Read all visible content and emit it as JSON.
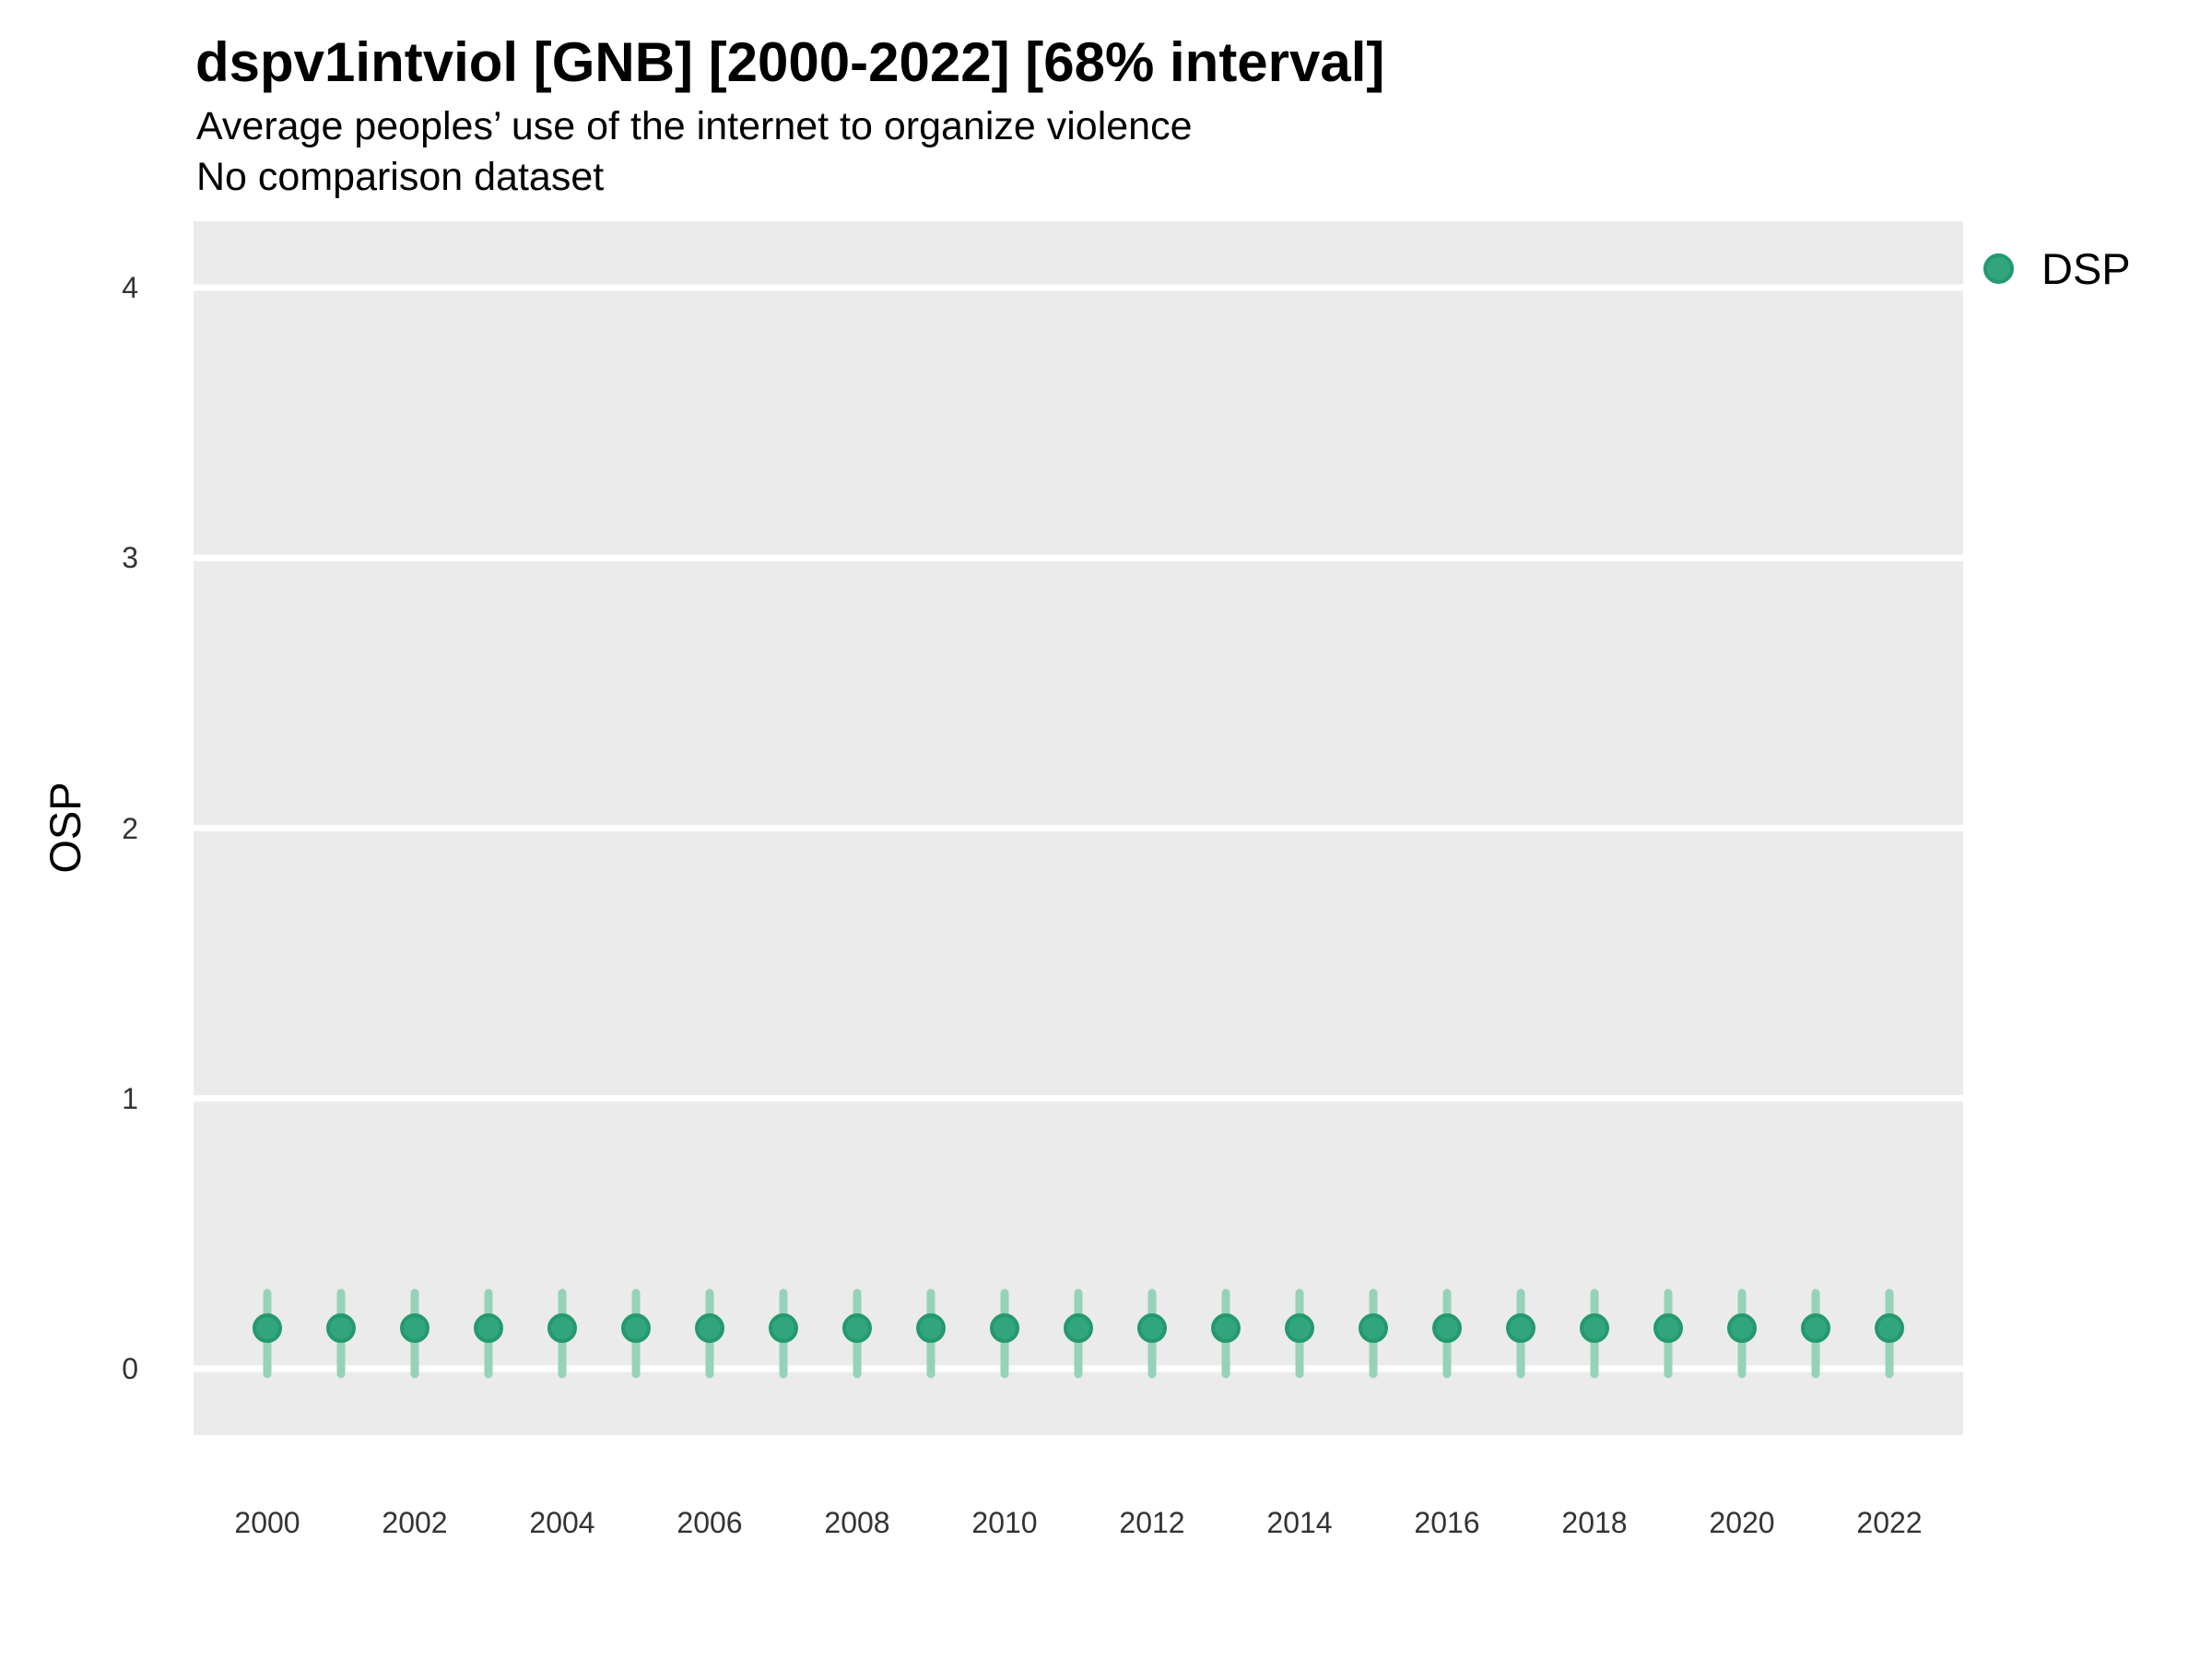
{
  "header": {
    "title": "dspv1intviol [GNB] [2000-2022] [68% interval]",
    "subtitle": "Average peoples’ use of the internet to organize violence",
    "note": "No comparison dataset"
  },
  "legend": {
    "position": "right-top",
    "items": [
      {
        "label": "DSP",
        "marker": "circle-icon",
        "color": "#31A67E",
        "border_color": "#24996D"
      }
    ]
  },
  "colors": {
    "panel_background": "#EBEBEB",
    "gridline": "#FFFFFF",
    "title_text": "#000000",
    "tick_text": "#333333",
    "point_fill": "#31A67E",
    "point_border": "#24996D",
    "interval_bar": "#96D2B8"
  },
  "chart_data": {
    "type": "scatter",
    "subtype": "pointrange",
    "title": "dspv1intviol [GNB] [2000-2022] [68% interval]",
    "subtitle": "Average peoples’ use of the internet to organize violence",
    "note": "No comparison dataset",
    "interval_level": "68%",
    "xlabel": "",
    "ylabel": "OSP",
    "x": [
      2000,
      2001,
      2002,
      2003,
      2004,
      2005,
      2006,
      2007,
      2008,
      2009,
      2010,
      2011,
      2012,
      2013,
      2014,
      2015,
      2016,
      2017,
      2018,
      2019,
      2020,
      2021,
      2022
    ],
    "series": [
      {
        "name": "DSP",
        "values": [
          0.15,
          0.15,
          0.15,
          0.15,
          0.15,
          0.15,
          0.15,
          0.15,
          0.15,
          0.15,
          0.15,
          0.15,
          0.15,
          0.15,
          0.15,
          0.15,
          0.15,
          0.15,
          0.15,
          0.15,
          0.15,
          0.15,
          0.15
        ],
        "interval_low": [
          -0.02,
          -0.02,
          -0.02,
          -0.02,
          -0.02,
          -0.02,
          -0.02,
          -0.02,
          -0.02,
          -0.02,
          -0.02,
          -0.02,
          -0.02,
          -0.02,
          -0.02,
          -0.02,
          -0.02,
          -0.02,
          -0.02,
          -0.02,
          -0.02,
          -0.02,
          -0.02
        ],
        "interval_high": [
          0.28,
          0.28,
          0.28,
          0.28,
          0.28,
          0.28,
          0.28,
          0.28,
          0.28,
          0.28,
          0.28,
          0.28,
          0.28,
          0.28,
          0.28,
          0.28,
          0.28,
          0.28,
          0.28,
          0.28,
          0.28,
          0.28,
          0.28
        ]
      }
    ],
    "ylim": [
      -0.25,
      4.25
    ],
    "yticks": [
      0,
      1,
      2,
      3,
      4
    ],
    "xtick_labels": [
      "2000",
      "2002",
      "2004",
      "2006",
      "2008",
      "2010",
      "2012",
      "2014",
      "2016",
      "2018",
      "2020",
      "2022"
    ],
    "grid": "major horizontal white lines on gray panel, no minor gridlines",
    "legend_position": "right-top"
  }
}
